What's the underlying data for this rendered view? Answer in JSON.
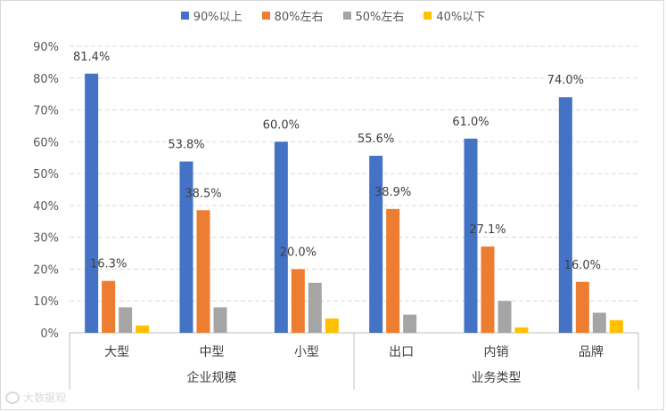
{
  "chart_data": {
    "type": "bar",
    "title": "",
    "xlabel": "",
    "ylabel": "",
    "ylim": [
      0,
      90
    ],
    "yticks": [
      "0%",
      "10%",
      "20%",
      "30%",
      "40%",
      "50%",
      "60%",
      "70%",
      "80%",
      "90%"
    ],
    "categories": [
      "大型",
      "中型",
      "小型",
      "出口",
      "内销",
      "品牌"
    ],
    "groups": [
      {
        "label": "企业规模",
        "categories": [
          "大型",
          "中型",
          "小型"
        ]
      },
      {
        "label": "业务类型",
        "categories": [
          "出口",
          "内销",
          "品牌"
        ]
      }
    ],
    "series": [
      {
        "name": "90%以上",
        "color": "#4472C4",
        "values": [
          81.4,
          53.8,
          60.0,
          55.6,
          61.0,
          74.0
        ],
        "labels": [
          "81.4%",
          "53.8%",
          "60.0%",
          "55.6%",
          "61.0%",
          "74.0%"
        ]
      },
      {
        "name": "80%左右",
        "color": "#ED7D31",
        "values": [
          16.3,
          38.5,
          20.0,
          38.9,
          27.1,
          16.0
        ],
        "labels": [
          "16.3%",
          "38.5%",
          "20.0%",
          "38.9%",
          "27.1%",
          "16.0%"
        ]
      },
      {
        "name": "50%左右",
        "color": "#A5A5A5",
        "values": [
          8.0,
          8.0,
          15.7,
          5.7,
          10.0,
          6.3
        ],
        "labels": []
      },
      {
        "name": "40%以下",
        "color": "#FFC000",
        "values": [
          2.3,
          0,
          4.5,
          0,
          1.7,
          4.0
        ],
        "labels": []
      }
    ],
    "grid": true,
    "gridstyle": "dashed",
    "legend": "top-center"
  },
  "watermark": "大数据观"
}
